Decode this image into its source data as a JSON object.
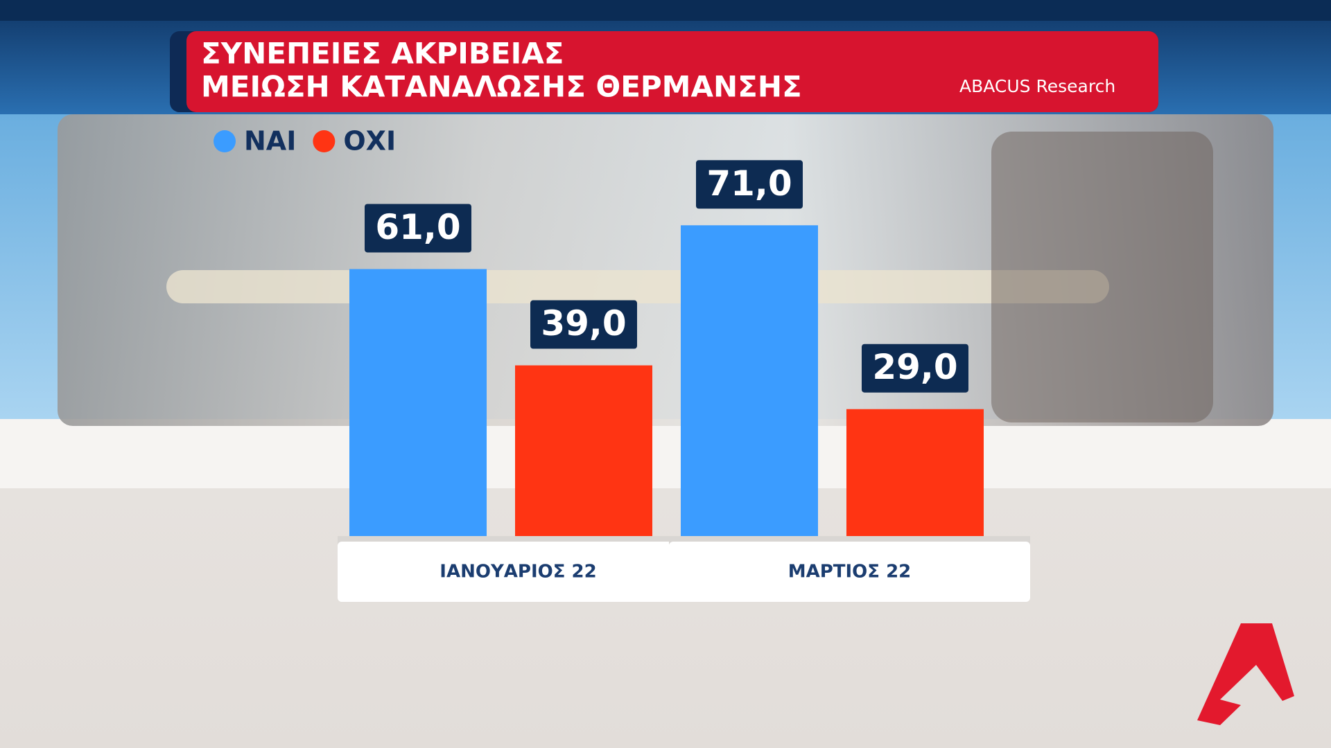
{
  "chart_data": {
    "type": "bar",
    "title": [
      "ΣΥΝΕΠΕΙΕΣ ΑΚΡΙΒΕΙΑΣ",
      "ΜΕΙΩΣΗ ΚΑΤΑΝΑΛΩΣΗΣ ΘΕΡΜΑΝΣΗΣ"
    ],
    "source": "ABACUS Research",
    "categories": [
      "ΙΑΝΟΥΑΡΙΟΣ 22",
      "ΜΑΡΤΙΟΣ 22"
    ],
    "series": [
      {
        "name": "ΝΑΙ",
        "color": "#3b9cff",
        "values": [
          61,
          71
        ],
        "value_labels": [
          "61,0",
          "71,0"
        ]
      },
      {
        "name": "ΟΧΙ",
        "color": "#ff3413",
        "values": [
          39,
          29
        ],
        "value_labels": [
          "39,0",
          "29,0"
        ]
      }
    ]
  }
}
